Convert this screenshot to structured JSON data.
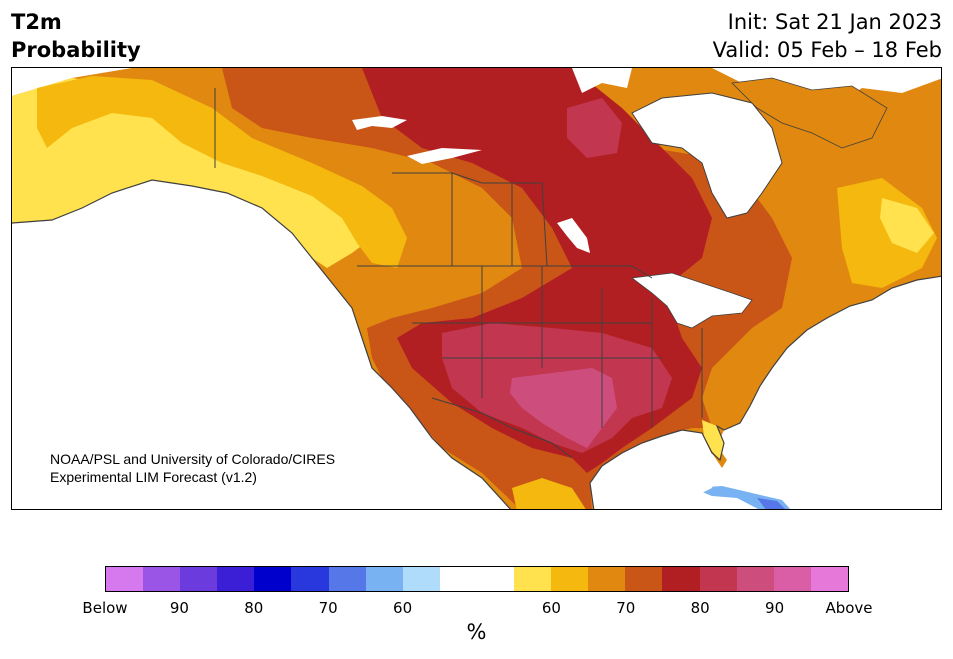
{
  "header": {
    "title_line1": "T2m",
    "title_line2": "Probability",
    "init": "Init: Sat 21 Jan 2023",
    "valid": "Valid: 05 Feb – 18 Feb"
  },
  "credit": {
    "line1": "NOAA/PSL and University of Colorado/CIRES",
    "line2": "Experimental LIM Forecast (v1.2)"
  },
  "colorbar": {
    "colors": [
      "#d678ee",
      "#9a54e6",
      "#6b3bdd",
      "#3a1fd6",
      "#0000cc",
      "#2838dc",
      "#5577e8",
      "#79b2f2",
      "#b0dcfb",
      "#ffffff",
      "#ffffff",
      "#ffe24d",
      "#f4b80e",
      "#e0880f",
      "#c95517",
      "#b21f22",
      "#c23650",
      "#cd4e7c",
      "#da5ea6",
      "#e678da"
    ],
    "tick_labels": [
      "Below",
      "90",
      "80",
      "70",
      "60",
      "60",
      "70",
      "80",
      "90",
      "Above"
    ],
    "unit": "%"
  },
  "map": {
    "background": "#ffffff",
    "border_color": "#404040",
    "categories": {
      "60": "#ffe24d",
      "65": "#f4b80e",
      "70": "#e0880f",
      "75": "#c95517",
      "80": "#b21f22",
      "85": "#c23650",
      "90": "#cd4e7c",
      "cold60": "#79b2f2",
      "cold70": "#5577e8"
    }
  }
}
